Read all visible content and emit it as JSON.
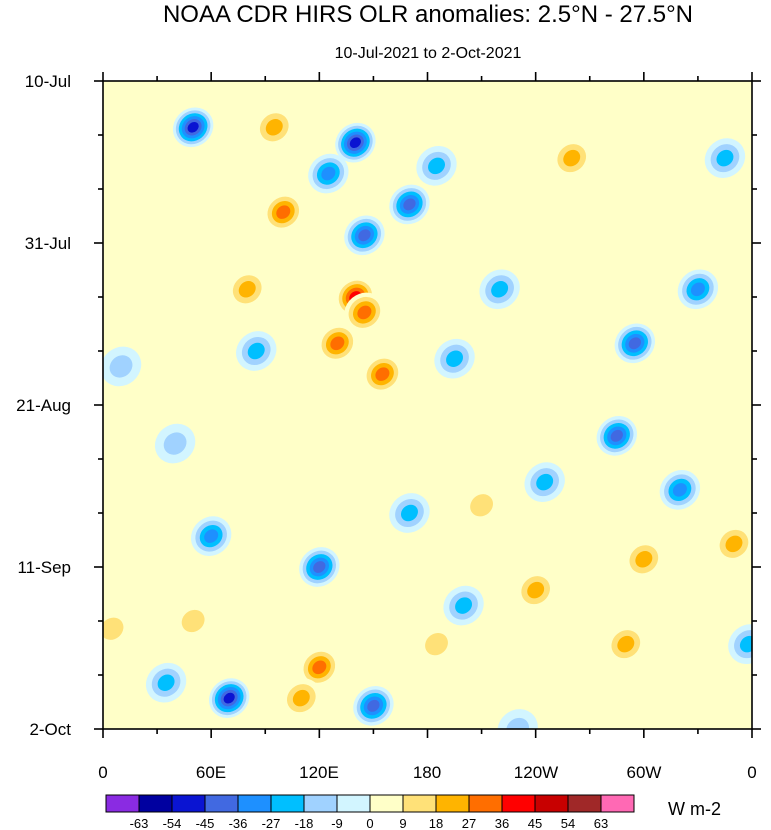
{
  "chart_data": {
    "type": "heatmap",
    "title": "NOAA CDR HIRS OLR anomalies: 2.5°N - 27.5°N",
    "subtitle": "10-Jul-2021 to 2-Oct-2021",
    "x_ticks": [
      "0",
      "60E",
      "120E",
      "180",
      "120W",
      "60W",
      "0"
    ],
    "x_tick_degrees": [
      0,
      60,
      120,
      180,
      240,
      300,
      360
    ],
    "y_ticks": [
      "10-Jul",
      "31-Jul",
      "21-Aug",
      "11-Sep",
      "2-Oct"
    ],
    "y_tick_days": [
      0,
      21,
      42,
      63,
      84
    ],
    "x_range": [
      0,
      360
    ],
    "y_range_days": [
      0,
      84
    ],
    "colorbar": {
      "levels": [
        "-63",
        "-54",
        "-45",
        "-36",
        "-27",
        "-18",
        "-9",
        "0",
        "9",
        "18",
        "27",
        "36",
        "45",
        "54",
        "63"
      ],
      "colors": [
        "#8a2be2",
        "#0000a0",
        "#0a14d2",
        "#4169e1",
        "#1e90ff",
        "#00bfff",
        "#a0d2ff",
        "#d2f5ff",
        "#ffffc8",
        "#ffe178",
        "#ffb400",
        "#ff6e00",
        "#ff0000",
        "#c80000",
        "#a02828",
        "#ff69b4"
      ],
      "units": "W m-2"
    },
    "features": [
      {
        "lon": 140,
        "day": 28,
        "value": 45
      },
      {
        "lon": 130,
        "day": 34,
        "value": 40
      },
      {
        "lon": 155,
        "day": 38,
        "value": 38
      },
      {
        "lon": 145,
        "day": 30,
        "value": 36
      },
      {
        "lon": 120,
        "day": 76,
        "value": 42
      },
      {
        "lon": 110,
        "day": 80,
        "value": 35
      },
      {
        "lon": 100,
        "day": 17,
        "value": 36
      },
      {
        "lon": 80,
        "day": 27,
        "value": 30
      },
      {
        "lon": 260,
        "day": 10,
        "value": 28
      },
      {
        "lon": 300,
        "day": 62,
        "value": 30
      },
      {
        "lon": 290,
        "day": 73,
        "value": 28
      },
      {
        "lon": 240,
        "day": 66,
        "value": 27
      },
      {
        "lon": 210,
        "day": 55,
        "value": 24
      },
      {
        "lon": 350,
        "day": 60,
        "value": 30
      },
      {
        "lon": 50,
        "day": 70,
        "value": 24
      },
      {
        "lon": 5,
        "day": 71,
        "value": 20
      },
      {
        "lon": 185,
        "day": 73,
        "value": 22
      },
      {
        "lon": 50,
        "day": 6,
        "value": -55
      },
      {
        "lon": 140,
        "day": 8,
        "value": -58
      },
      {
        "lon": 170,
        "day": 16,
        "value": -50
      },
      {
        "lon": 145,
        "day": 20,
        "value": -45
      },
      {
        "lon": 125,
        "day": 12,
        "value": -40
      },
      {
        "lon": 185,
        "day": 11,
        "value": -35
      },
      {
        "lon": 70,
        "day": 80,
        "value": -55
      },
      {
        "lon": 150,
        "day": 81,
        "value": -48
      },
      {
        "lon": 120,
        "day": 63,
        "value": -50
      },
      {
        "lon": 60,
        "day": 59,
        "value": -38
      },
      {
        "lon": 295,
        "day": 34,
        "value": -50
      },
      {
        "lon": 285,
        "day": 46,
        "value": -45
      },
      {
        "lon": 320,
        "day": 53,
        "value": -40
      },
      {
        "lon": 10,
        "day": 37,
        "value": -25
      },
      {
        "lon": 85,
        "day": 35,
        "value": -35
      },
      {
        "lon": 40,
        "day": 47,
        "value": -25
      },
      {
        "lon": 35,
        "day": 78,
        "value": -30
      },
      {
        "lon": 245,
        "day": 52,
        "value": -30
      },
      {
        "lon": 220,
        "day": 27,
        "value": -28
      },
      {
        "lon": 330,
        "day": 27,
        "value": -36
      },
      {
        "lon": 195,
        "day": 36,
        "value": -28
      },
      {
        "lon": 170,
        "day": 56,
        "value": -30
      },
      {
        "lon": 200,
        "day": 68,
        "value": -30
      },
      {
        "lon": 230,
        "day": 84,
        "value": -25
      },
      {
        "lon": 345,
        "day": 10,
        "value": -30
      },
      {
        "lon": 358,
        "day": 73,
        "value": -30
      },
      {
        "lon": 95,
        "day": 6,
        "value": 30
      }
    ]
  }
}
